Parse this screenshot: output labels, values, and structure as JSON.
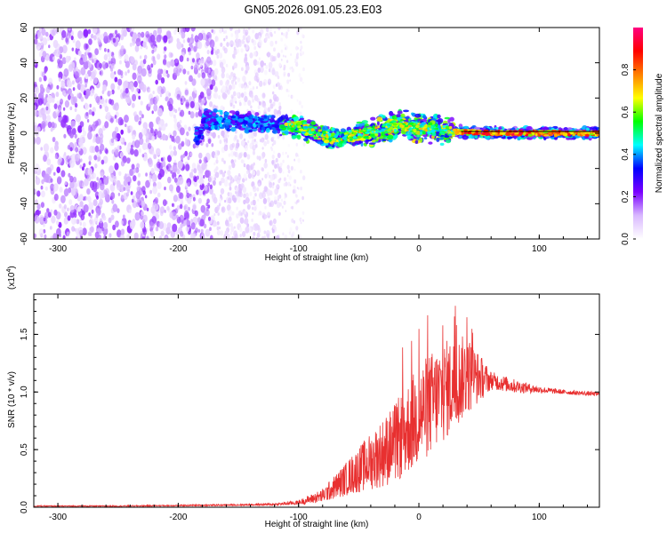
{
  "title": "GN05.2026.091.05.23.E03",
  "colors": {
    "snr_line": "#e83030",
    "spectrogram_low": "#8a2be2",
    "colorbar_stops": [
      "#ffffff",
      "#d9b8ff",
      "#7a00ff",
      "#0000ff",
      "#00ffff",
      "#00ff00",
      "#ffff00",
      "#ff8000",
      "#ff0000",
      "#ff0080"
    ]
  },
  "chart_data": [
    {
      "type": "heatmap",
      "title": "",
      "xlabel": "Height of straight line (km)",
      "ylabel": "Frequency (Hz)",
      "xlim": [
        -320,
        150
      ],
      "ylim": [
        -60,
        60
      ],
      "xticks": [
        -300,
        -200,
        -100,
        0,
        100
      ],
      "yticks": [
        -60,
        -40,
        -20,
        0,
        20,
        40,
        60
      ],
      "colorbar": {
        "label": "Normalized spectral amplitude",
        "range": [
          0.0,
          1.0
        ],
        "ticks": [
          0.0,
          0.2,
          0.4,
          0.6,
          0.8
        ]
      },
      "regions": [
        {
          "x_range": [
            -320,
            -170
          ],
          "y_range": [
            -60,
            60
          ],
          "level": 0.12
        },
        {
          "x_range": [
            -170,
            -115
          ],
          "y_range": [
            -60,
            60
          ],
          "level": 0.06
        },
        {
          "x_range": [
            -115,
            -40
          ],
          "y_range": [
            -5,
            5
          ],
          "level": 0.35
        },
        {
          "x_range": [
            -40,
            30
          ],
          "y_range": [
            -6,
            10
          ],
          "level": 0.45
        },
        {
          "x_range": [
            30,
            150
          ],
          "y_range": [
            -2,
            2
          ],
          "level": 0.9
        }
      ],
      "ridge_center_hz": [
        {
          "x": -180,
          "y": 8
        },
        {
          "x": -140,
          "y": 6
        },
        {
          "x": -100,
          "y": 4
        },
        {
          "x": -75,
          "y": -3
        },
        {
          "x": -50,
          "y": -1
        },
        {
          "x": -30,
          "y": 2
        },
        {
          "x": -15,
          "y": 5
        },
        {
          "x": 0,
          "y": 3
        },
        {
          "x": 30,
          "y": 1
        },
        {
          "x": 60,
          "y": 0
        },
        {
          "x": 100,
          "y": 0
        },
        {
          "x": 150,
          "y": 0
        }
      ]
    },
    {
      "type": "line",
      "title": "",
      "xlabel": "Height of straight line (km)",
      "ylabel": "SNR (10 * v/v)",
      "y_multiplier_label": "(x10",
      "y_multiplier_exp": "4",
      "y_multiplier_close": ")",
      "xlim": [
        -320,
        150
      ],
      "ylim": [
        0,
        1.85
      ],
      "xticks": [
        -300,
        -200,
        -100,
        0,
        100
      ],
      "yticks": [
        0.0,
        0.5,
        1.0,
        1.5
      ],
      "ytick_labels": [
        "0.0",
        "0.5",
        "1.0",
        "1.5"
      ],
      "series": [
        {
          "x": [
            -320,
            -250,
            -200,
            -150,
            -120,
            -100,
            -80,
            -60,
            -40,
            -20,
            0,
            20,
            40,
            60,
            80,
            100,
            120,
            150
          ],
          "y": [
            0.01,
            0.01,
            0.015,
            0.02,
            0.025,
            0.04,
            0.1,
            0.25,
            0.4,
            0.55,
            0.8,
            1.0,
            1.15,
            1.1,
            1.05,
            1.02,
            1.0,
            0.98
          ],
          "noise_amplitude": [
            0.005,
            0.005,
            0.006,
            0.008,
            0.01,
            0.02,
            0.06,
            0.15,
            0.25,
            0.35,
            0.45,
            0.45,
            0.35,
            0.08,
            0.06,
            0.03,
            0.02,
            0.02
          ]
        }
      ]
    }
  ]
}
